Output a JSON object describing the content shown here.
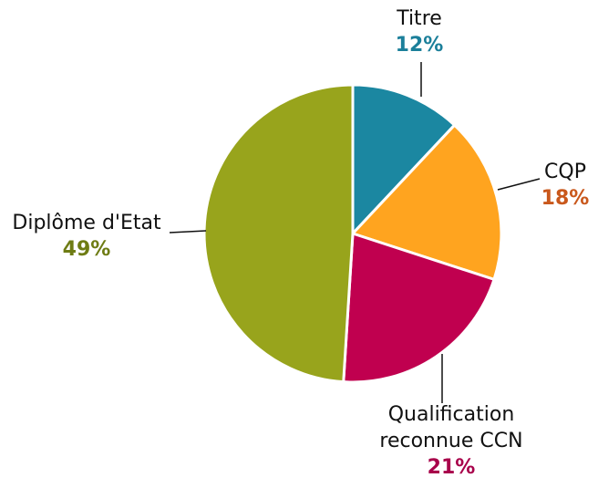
{
  "chart_data": {
    "type": "pie",
    "categories": [
      "Titre",
      "CQP",
      "Qualification reconnue CCN",
      "Diplôme d'Etat"
    ],
    "values": [
      12,
      18,
      21,
      49
    ],
    "value_labels": [
      "12%",
      "18%",
      "21%",
      "49%"
    ],
    "colors": [
      "#1b87a1",
      "#ffa41f",
      "#c0004f",
      "#98a41c"
    ],
    "label_colors": [
      "#1b7f9a",
      "#c9581c",
      "#a8004a",
      "#6e7c14"
    ]
  }
}
